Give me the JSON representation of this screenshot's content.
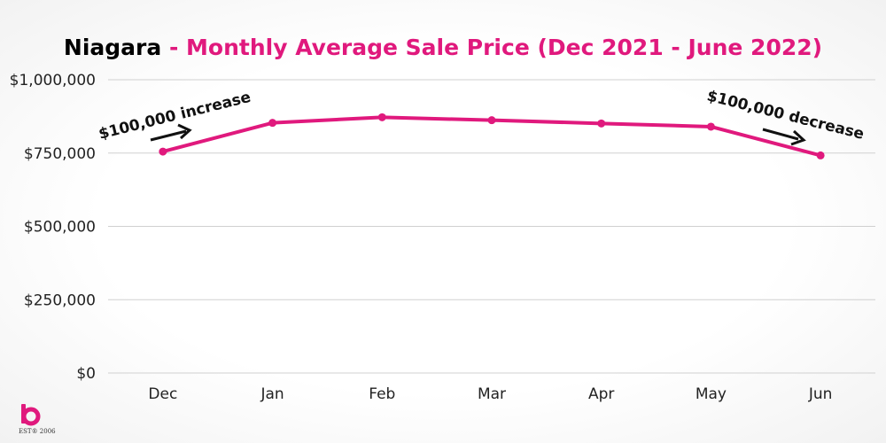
{
  "title": {
    "region": "Niagara",
    "separator": " - ",
    "subtitle": "Monthly Average Sale Price (Dec 2021 - June 2022)"
  },
  "colors": {
    "accent": "#e0197d",
    "grid": "#d0d0d0",
    "axis_text": "#222222"
  },
  "logo": {
    "letter": "b",
    "est_text": "EST® 2006"
  },
  "chart_data": {
    "type": "line",
    "categories": [
      "Dec",
      "Jan",
      "Feb",
      "Mar",
      "Apr",
      "May",
      "Jun"
    ],
    "series": [
      {
        "values": [
          755000,
          853000,
          872000,
          862000,
          851000,
          840000,
          742000
        ]
      }
    ],
    "ylim": [
      0,
      1000000
    ],
    "yticks": [
      0,
      250000,
      500000,
      750000,
      1000000
    ],
    "ytick_labels": [
      "$0",
      "$250,000",
      "$500,000",
      "$750,000",
      "$1,000,000"
    ],
    "grid": true,
    "annotations": [
      {
        "text": "$100,000 increase",
        "anchor": "Dec"
      },
      {
        "text": "$100,000 decrease",
        "anchor": "Jun"
      }
    ]
  }
}
